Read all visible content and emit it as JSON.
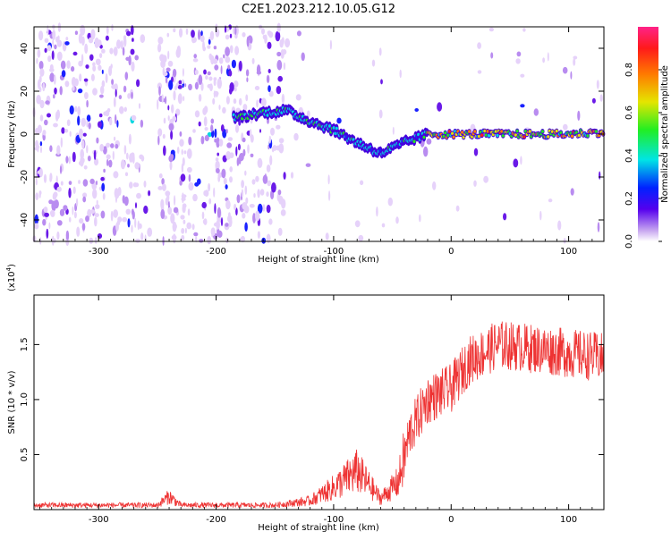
{
  "title": "C2E1.2023.212.10.05.G12",
  "chart_data": [
    {
      "type": "heatmap",
      "xlabel": "Height of straight line (km)",
      "ylabel": "Frequency (Hz)",
      "xlim": [
        -355,
        130
      ],
      "ylim": [
        -50,
        50
      ],
      "xticks": [
        -300,
        -200,
        -100,
        0,
        100
      ],
      "yticks": [
        -40,
        -20,
        0,
        20,
        40
      ],
      "colorbar": {
        "label": "Normalized spectral amplitude",
        "ticks": [
          "0.0",
          "0.2",
          "0.4",
          "0.6",
          "0.8"
        ],
        "range": [
          0,
          1
        ]
      },
      "ridge": [
        {
          "x": -180,
          "y": 8
        },
        {
          "x": -160,
          "y": 10
        },
        {
          "x": -140,
          "y": 11
        },
        {
          "x": -120,
          "y": 6
        },
        {
          "x": -100,
          "y": 2
        },
        {
          "x": -80,
          "y": -4
        },
        {
          "x": -60,
          "y": -9
        },
        {
          "x": -40,
          "y": -4
        },
        {
          "x": -20,
          "y": 0
        },
        {
          "x": 0,
          "y": 0
        },
        {
          "x": 50,
          "y": 0
        },
        {
          "x": 100,
          "y": 0
        },
        {
          "x": 130,
          "y": 1
        }
      ]
    },
    {
      "type": "line",
      "xlabel": "Height of straight line (km)",
      "ylabel": "SNR (10 * v/v)",
      "multiplier": "(x10",
      "multiplier_exp": "4",
      "multiplier_close": ")",
      "xlim": [
        -355,
        130
      ],
      "ylim": [
        0,
        1.95
      ],
      "xticks": [
        -300,
        -200,
        -100,
        0,
        100
      ],
      "yticks": [
        "0.5",
        "1.0",
        "1.5"
      ],
      "color": "#ee3333",
      "envelope": [
        {
          "x": -355,
          "y": 0.04
        },
        {
          "x": -250,
          "y": 0.04
        },
        {
          "x": -240,
          "y": 0.12
        },
        {
          "x": -230,
          "y": 0.04
        },
        {
          "x": -150,
          "y": 0.04
        },
        {
          "x": -120,
          "y": 0.08
        },
        {
          "x": -100,
          "y": 0.2
        },
        {
          "x": -80,
          "y": 0.35
        },
        {
          "x": -60,
          "y": 0.1
        },
        {
          "x": -45,
          "y": 0.25
        },
        {
          "x": -35,
          "y": 0.7
        },
        {
          "x": -20,
          "y": 1.0
        },
        {
          "x": 0,
          "y": 1.1
        },
        {
          "x": 15,
          "y": 1.35
        },
        {
          "x": 40,
          "y": 1.5
        },
        {
          "x": 80,
          "y": 1.45
        },
        {
          "x": 130,
          "y": 1.38
        }
      ]
    }
  ]
}
